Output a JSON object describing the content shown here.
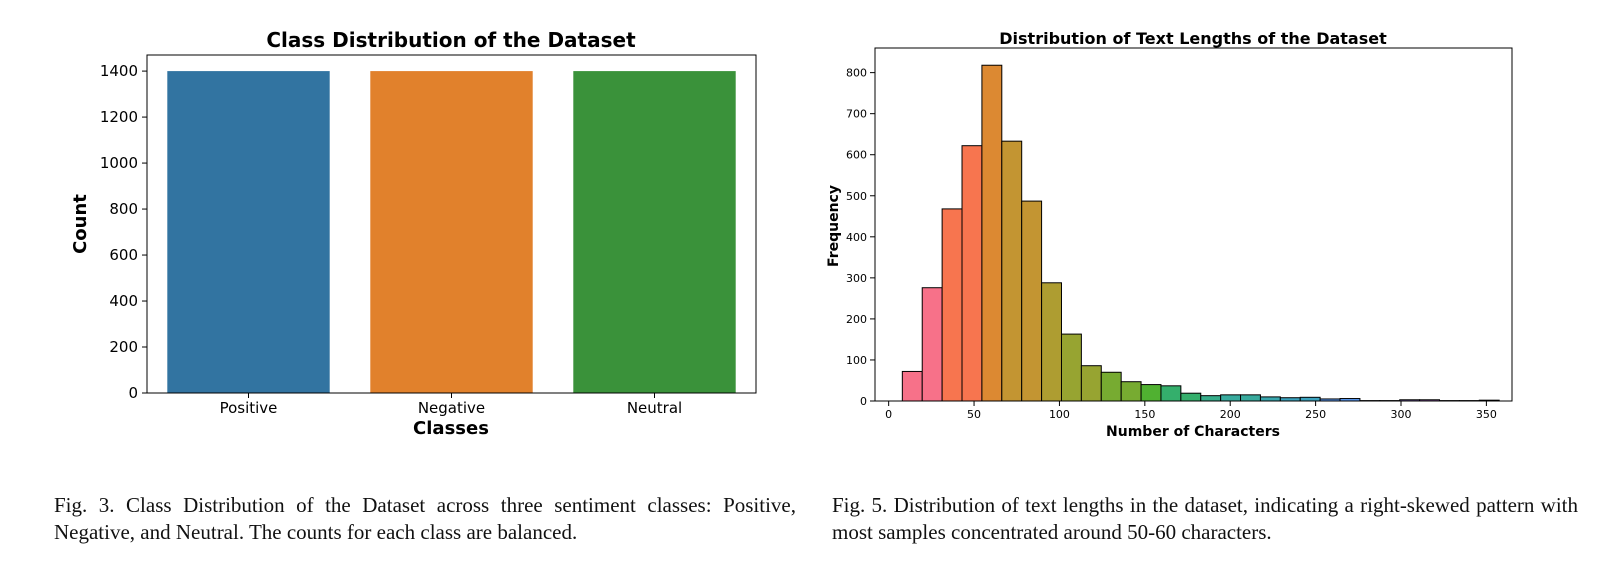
{
  "chart_data": [
    {
      "type": "bar",
      "title": "Class Distribution of the Dataset",
      "xlabel": "Classes",
      "ylabel": "Count",
      "categories": [
        "Positive",
        "Negative",
        "Neutral"
      ],
      "values": [
        1400,
        1400,
        1400
      ],
      "colors": [
        "#3274a1",
        "#e1812c",
        "#3a923a"
      ],
      "ylim": [
        0,
        1470
      ],
      "yticks": [
        0,
        200,
        400,
        600,
        800,
        1000,
        1200,
        1400
      ],
      "grid": false
    },
    {
      "type": "bar",
      "subtype": "histogram",
      "title": "Distribution of Text Lengths of the Dataset",
      "xlabel": "Number of Characters",
      "ylabel": "Frequency",
      "xlim": [
        -8,
        365
      ],
      "ylim": [
        0,
        860
      ],
      "xticks": [
        0,
        50,
        100,
        150,
        200,
        250,
        300,
        350
      ],
      "yticks": [
        0,
        100,
        200,
        300,
        400,
        500,
        600,
        700,
        800
      ],
      "bin_width": 11.65,
      "bin_start": 8,
      "values": [
        72,
        276,
        468,
        622,
        818,
        633,
        487,
        288,
        163,
        86,
        70,
        47,
        40,
        37,
        19,
        13,
        15,
        15,
        10,
        8,
        9,
        5,
        6,
        1,
        1,
        3,
        3,
        1,
        1,
        2
      ],
      "colors": [
        "#f77189",
        "#f7754f",
        "#dc8932",
        "#c39532",
        "#ae9d31",
        "#97a431",
        "#77ab31",
        "#50b131",
        "#34af6c",
        "#36ad8a",
        "#38aa9d",
        "#39a7ae",
        "#3ba3be",
        "#5a9af4",
        "#8d8cf4",
        "#a582f4",
        "#cc7af4",
        "#f565cc",
        "#f66bad"
      ],
      "grid": false
    }
  ],
  "captions": {
    "left": "Fig. 3.  Class Distribution of the Dataset across three sentiment classes: Positive, Negative, and Neutral. The counts for each class are balanced.",
    "right": "Fig. 5.  Distribution of text lengths in the dataset, indicating a right-skewed pattern with most samples concentrated around 50-60 characters."
  }
}
